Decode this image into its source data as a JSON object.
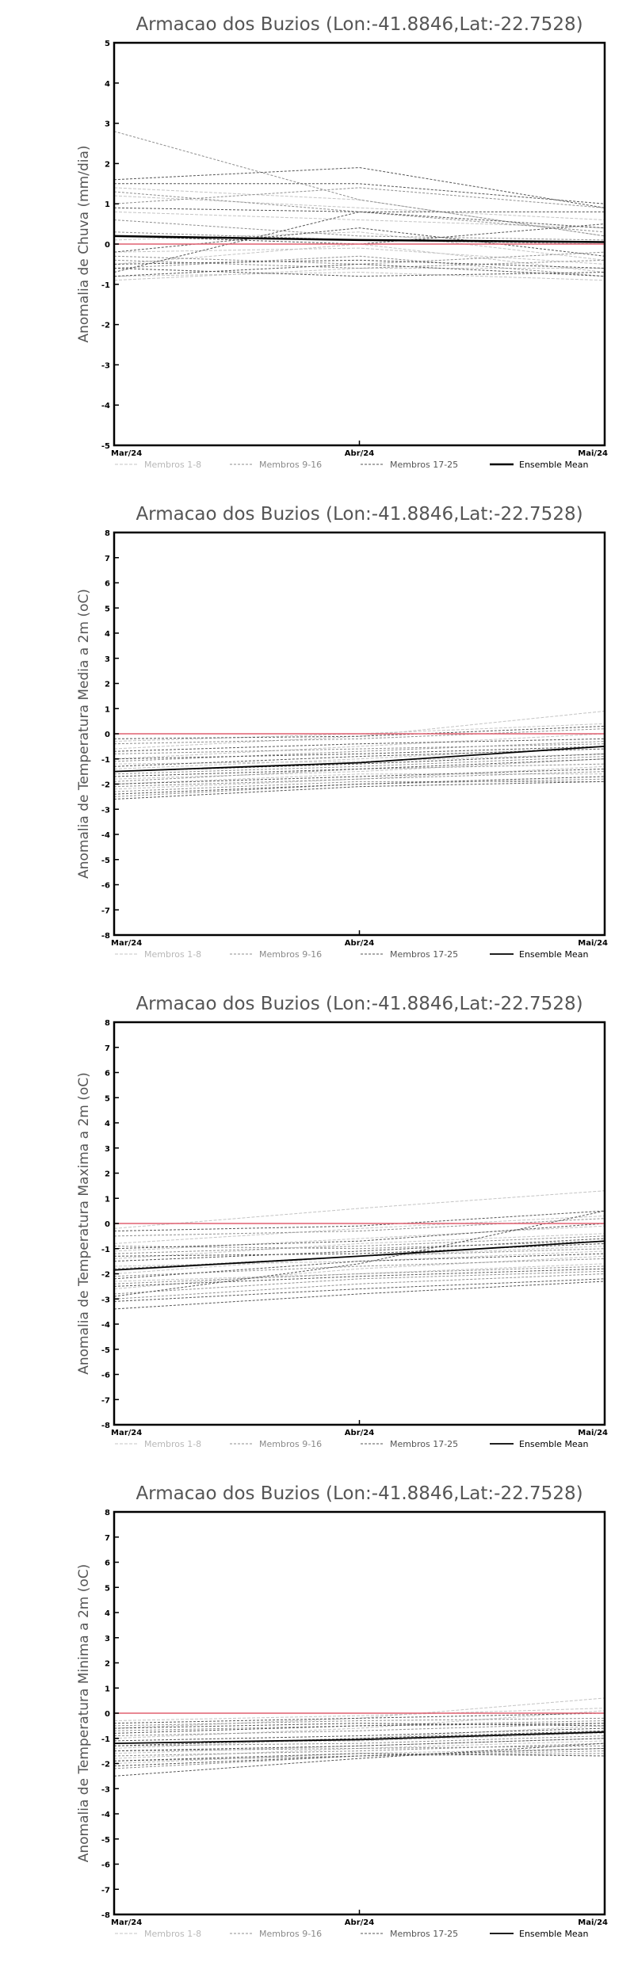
{
  "chart_data": [
    {
      "type": "line",
      "title": "Armacao dos Buzios (Lon:-41.8846,Lat:-22.7528)",
      "ylabel": "Anomalia de Chuva (mm/dia)",
      "xlabel": "",
      "categories": [
        "Mar/24",
        "Abr/24",
        "Mai/24"
      ],
      "ylim": [
        -5,
        5
      ],
      "yticks": [
        -5,
        -4,
        -3,
        -2,
        -1,
        0,
        1,
        2,
        3,
        4,
        5
      ],
      "grid": false,
      "legend_position": "bottom",
      "legend": [
        "Membros 1-8",
        "Membros 9-16",
        "Membros 17-25",
        "Ensemble Mean"
      ],
      "series": [
        {
          "group": 0,
          "values": [
            1.2,
            0.9,
            0.6
          ]
        },
        {
          "group": 0,
          "values": [
            0.8,
            0.6,
            0.4
          ]
        },
        {
          "group": 0,
          "values": [
            1.4,
            1.1,
            0.2
          ]
        },
        {
          "group": 0,
          "values": [
            -0.8,
            -0.7,
            -0.9
          ]
        },
        {
          "group": 0,
          "values": [
            -0.9,
            -0.6,
            -0.6
          ]
        },
        {
          "group": 0,
          "values": [
            -0.2,
            -0.1,
            -0.5
          ]
        },
        {
          "group": 0,
          "values": [
            0.1,
            0.3,
            -0.4
          ]
        },
        {
          "group": 0,
          "values": [
            -0.5,
            0.0,
            -0.7
          ]
        },
        {
          "group": 1,
          "values": [
            2.8,
            1.1,
            0.2
          ]
        },
        {
          "group": 1,
          "values": [
            1.0,
            1.4,
            0.9
          ]
        },
        {
          "group": 1,
          "values": [
            -0.4,
            -0.6,
            -0.4
          ]
        },
        {
          "group": 1,
          "values": [
            0.3,
            0.1,
            0.0
          ]
        },
        {
          "group": 1,
          "values": [
            -0.6,
            -0.3,
            -0.8
          ]
        },
        {
          "group": 1,
          "values": [
            1.3,
            0.8,
            0.3
          ]
        },
        {
          "group": 1,
          "values": [
            -0.3,
            -0.5,
            -0.2
          ]
        },
        {
          "group": 1,
          "values": [
            0.6,
            0.2,
            0.1
          ]
        },
        {
          "group": 2,
          "values": [
            1.6,
            1.9,
            0.9
          ]
        },
        {
          "group": 2,
          "values": [
            1.5,
            1.5,
            1.0
          ]
        },
        {
          "group": 2,
          "values": [
            -0.7,
            0.8,
            0.8
          ]
        },
        {
          "group": 2,
          "values": [
            -0.6,
            -0.8,
            -0.7
          ]
        },
        {
          "group": 2,
          "values": [
            -0.5,
            -0.4,
            -0.6
          ]
        },
        {
          "group": 2,
          "values": [
            -0.2,
            0.4,
            -0.3
          ]
        },
        {
          "group": 2,
          "values": [
            0.2,
            0.0,
            0.5
          ]
        },
        {
          "group": 2,
          "values": [
            -0.8,
            -0.5,
            -0.8
          ]
        },
        {
          "group": 2,
          "values": [
            0.9,
            0.8,
            0.4
          ]
        },
        {
          "group": 3,
          "values": [
            0.2,
            0.1,
            0.05
          ]
        }
      ],
      "reference_line": 0
    },
    {
      "type": "line",
      "title": "Armacao dos Buzios (Lon:-41.8846,Lat:-22.7528)",
      "ylabel": "Anomalia de Temperatura Media a 2m (oC)",
      "xlabel": "",
      "categories": [
        "Mar/24",
        "Abr/24",
        "Mai/24"
      ],
      "ylim": [
        -8,
        8
      ],
      "yticks": [
        -8,
        -7,
        -6,
        -5,
        -4,
        -3,
        -2,
        -1,
        0,
        1,
        2,
        3,
        4,
        5,
        6,
        7,
        8
      ],
      "grid": false,
      "legend_position": "bottom",
      "legend": [
        "Membros 1-8",
        "Membros 9-16",
        "Membros 17-25",
        "Ensemble Mean"
      ],
      "series": [
        {
          "group": 0,
          "values": [
            -0.6,
            -0.1,
            0.9
          ]
        },
        {
          "group": 0,
          "values": [
            -1.0,
            -0.5,
            0.0
          ]
        },
        {
          "group": 0,
          "values": [
            -1.4,
            -1.0,
            -0.5
          ]
        },
        {
          "group": 0,
          "values": [
            -1.8,
            -1.5,
            -1.0
          ]
        },
        {
          "group": 0,
          "values": [
            -2.2,
            -1.8,
            -1.3
          ]
        },
        {
          "group": 0,
          "values": [
            -0.3,
            0.0,
            0.4
          ]
        },
        {
          "group": 0,
          "values": [
            -1.2,
            -1.1,
            -0.8
          ]
        },
        {
          "group": 0,
          "values": [
            -2.0,
            -1.6,
            -1.6
          ]
        },
        {
          "group": 1,
          "values": [
            -0.4,
            -0.2,
            0.2
          ]
        },
        {
          "group": 1,
          "values": [
            -1.1,
            -0.7,
            -0.3
          ]
        },
        {
          "group": 1,
          "values": [
            -1.6,
            -1.3,
            -0.9
          ]
        },
        {
          "group": 1,
          "values": [
            -2.1,
            -1.8,
            -1.5
          ]
        },
        {
          "group": 1,
          "values": [
            -2.5,
            -2.0,
            -1.8
          ]
        },
        {
          "group": 1,
          "values": [
            -0.8,
            -0.6,
            -0.4
          ]
        },
        {
          "group": 1,
          "values": [
            -1.9,
            -1.4,
            -1.2
          ]
        },
        {
          "group": 1,
          "values": [
            -2.3,
            -1.9,
            -1.9
          ]
        },
        {
          "group": 2,
          "values": [
            -0.2,
            -0.1,
            0.3
          ]
        },
        {
          "group": 2,
          "values": [
            -0.7,
            -0.4,
            -0.2
          ]
        },
        {
          "group": 2,
          "values": [
            -1.3,
            -0.9,
            -0.6
          ]
        },
        {
          "group": 2,
          "values": [
            -1.7,
            -1.4,
            -1.0
          ]
        },
        {
          "group": 2,
          "values": [
            -2.0,
            -1.7,
            -1.4
          ]
        },
        {
          "group": 2,
          "values": [
            -2.4,
            -2.0,
            -1.7
          ]
        },
        {
          "group": 2,
          "values": [
            -1.0,
            -0.8,
            -0.5
          ]
        },
        {
          "group": 2,
          "values": [
            -1.5,
            -1.2,
            -0.8
          ]
        },
        {
          "group": 2,
          "values": [
            -2.6,
            -2.1,
            -1.9
          ]
        },
        {
          "group": 3,
          "values": [
            -1.5,
            -1.15,
            -0.5
          ]
        }
      ],
      "reference_line": 0
    },
    {
      "type": "line",
      "title": "Armacao dos Buzios (Lon:-41.8846,Lat:-22.7528)",
      "ylabel": "Anomalia de Temperatura Maxima a 2m (oC)",
      "xlabel": "",
      "categories": [
        "Mar/24",
        "Abr/24",
        "Mai/24"
      ],
      "ylim": [
        -8,
        8
      ],
      "yticks": [
        -8,
        -7,
        -6,
        -5,
        -4,
        -3,
        -2,
        -1,
        0,
        1,
        2,
        3,
        4,
        5,
        6,
        7,
        8
      ],
      "grid": false,
      "legend_position": "bottom",
      "legend": [
        "Membros 1-8",
        "Membros 9-16",
        "Membros 17-25",
        "Ensemble Mean"
      ],
      "series": [
        {
          "group": 0,
          "values": [
            -0.2,
            0.6,
            1.3
          ]
        },
        {
          "group": 0,
          "values": [
            -0.8,
            -0.2,
            0.3
          ]
        },
        {
          "group": 0,
          "values": [
            -1.4,
            -0.8,
            -0.4
          ]
        },
        {
          "group": 0,
          "values": [
            -2.0,
            -1.3,
            -0.9
          ]
        },
        {
          "group": 0,
          "values": [
            -2.6,
            -1.8,
            -1.3
          ]
        },
        {
          "group": 0,
          "values": [
            -1.1,
            -0.6,
            -0.1
          ]
        },
        {
          "group": 0,
          "values": [
            -1.7,
            -1.5,
            -1.1
          ]
        },
        {
          "group": 0,
          "values": [
            -2.3,
            -2.0,
            -1.6
          ]
        },
        {
          "group": 1,
          "values": [
            -0.5,
            -0.3,
            0.2
          ]
        },
        {
          "group": 1,
          "values": [
            -1.2,
            -0.9,
            -0.5
          ]
        },
        {
          "group": 1,
          "values": [
            -1.8,
            -1.3,
            -1.0
          ]
        },
        {
          "group": 1,
          "values": [
            -2.4,
            -2.0,
            -1.7
          ]
        },
        {
          "group": 1,
          "values": [
            -3.0,
            -2.4,
            -2.0
          ]
        },
        {
          "group": 1,
          "values": [
            -0.9,
            -1.0,
            -0.7
          ]
        },
        {
          "group": 1,
          "values": [
            -2.1,
            -1.7,
            -1.4
          ]
        },
        {
          "group": 1,
          "values": [
            -2.8,
            -2.2,
            -1.9
          ]
        },
        {
          "group": 2,
          "values": [
            -0.3,
            -0.1,
            0.5
          ]
        },
        {
          "group": 2,
          "values": [
            -1.0,
            -0.7,
            0.0
          ]
        },
        {
          "group": 2,
          "values": [
            -1.5,
            -1.1,
            -0.6
          ]
        },
        {
          "group": 2,
          "values": [
            -2.2,
            -1.5,
            -1.2
          ]
        },
        {
          "group": 2,
          "values": [
            -2.9,
            -1.6,
            0.5
          ]
        },
        {
          "group": 2,
          "values": [
            -3.1,
            -2.6,
            -2.2
          ]
        },
        {
          "group": 2,
          "values": [
            -3.4,
            -2.8,
            -2.3
          ]
        },
        {
          "group": 2,
          "values": [
            -1.3,
            -1.2,
            -0.8
          ]
        },
        {
          "group": 2,
          "values": [
            -2.5,
            -2.1,
            -1.8
          ]
        },
        {
          "group": 3,
          "values": [
            -1.85,
            -1.3,
            -0.7
          ]
        }
      ],
      "reference_line": 0
    },
    {
      "type": "line",
      "title": "Armacao dos Buzios (Lon:-41.8846,Lat:-22.7528)",
      "ylabel": "Anomalia de Temperatura Minima a 2m (oC)",
      "xlabel": "",
      "categories": [
        "Mar/24",
        "Abr/24",
        "Mai/24"
      ],
      "ylim": [
        -8,
        8
      ],
      "yticks": [
        -8,
        -7,
        -6,
        -5,
        -4,
        -3,
        -2,
        -1,
        0,
        1,
        2,
        3,
        4,
        5,
        6,
        7,
        8
      ],
      "grid": false,
      "legend_position": "bottom",
      "legend": [
        "Membros 1-8",
        "Membros 9-16",
        "Membros 17-25",
        "Ensemble Mean"
      ],
      "series": [
        {
          "group": 0,
          "values": [
            -0.6,
            -0.2,
            0.6
          ]
        },
        {
          "group": 0,
          "values": [
            -1.0,
            -0.6,
            0.1
          ]
        },
        {
          "group": 0,
          "values": [
            -1.4,
            -1.0,
            -0.5
          ]
        },
        {
          "group": 0,
          "values": [
            -1.8,
            -1.4,
            -1.1
          ]
        },
        {
          "group": 0,
          "values": [
            -0.3,
            -0.1,
            0.2
          ]
        },
        {
          "group": 0,
          "values": [
            -1.2,
            -1.1,
            -0.8
          ]
        },
        {
          "group": 0,
          "values": [
            -2.0,
            -1.6,
            -1.4
          ]
        },
        {
          "group": 0,
          "values": [
            -1.6,
            -1.3,
            -1.0
          ]
        },
        {
          "group": 1,
          "values": [
            -0.5,
            -0.3,
            -0.2
          ]
        },
        {
          "group": 1,
          "values": [
            -0.9,
            -0.7,
            -0.4
          ]
        },
        {
          "group": 1,
          "values": [
            -1.3,
            -1.2,
            -0.9
          ]
        },
        {
          "group": 1,
          "values": [
            -1.7,
            -1.5,
            -1.2
          ]
        },
        {
          "group": 1,
          "values": [
            -2.2,
            -1.7,
            -1.6
          ]
        },
        {
          "group": 1,
          "values": [
            -0.7,
            -0.5,
            -0.3
          ]
        },
        {
          "group": 1,
          "values": [
            -1.5,
            -1.4,
            -1.3
          ]
        },
        {
          "group": 1,
          "values": [
            -1.9,
            -1.7,
            -1.5
          ]
        },
        {
          "group": 2,
          "values": [
            -0.4,
            -0.2,
            0.0
          ]
        },
        {
          "group": 2,
          "values": [
            -0.8,
            -0.5,
            -0.4
          ]
        },
        {
          "group": 2,
          "values": [
            -1.1,
            -0.9,
            -0.6
          ]
        },
        {
          "group": 2,
          "values": [
            -1.5,
            -1.3,
            -1.0
          ]
        },
        {
          "group": 2,
          "values": [
            -2.5,
            -1.8,
            -1.2
          ]
        },
        {
          "group": 2,
          "values": [
            -1.9,
            -1.6,
            -1.7
          ]
        },
        {
          "group": 2,
          "values": [
            -1.3,
            -1.0,
            -0.7
          ]
        },
        {
          "group": 2,
          "values": [
            -2.1,
            -1.7,
            -1.4
          ]
        },
        {
          "group": 2,
          "values": [
            -0.6,
            -0.4,
            -0.5
          ]
        },
        {
          "group": 3,
          "values": [
            -1.2,
            -1.05,
            -0.75
          ]
        }
      ],
      "reference_line": 0
    }
  ],
  "colors": {
    "members_1_8": "#c4c4c4",
    "members_9_16": "#8f8f8f",
    "members_17_25": "#555555",
    "ensemble_mean": "#000000",
    "reference": "#e06070",
    "axis": "#000000",
    "title": "#555555"
  }
}
